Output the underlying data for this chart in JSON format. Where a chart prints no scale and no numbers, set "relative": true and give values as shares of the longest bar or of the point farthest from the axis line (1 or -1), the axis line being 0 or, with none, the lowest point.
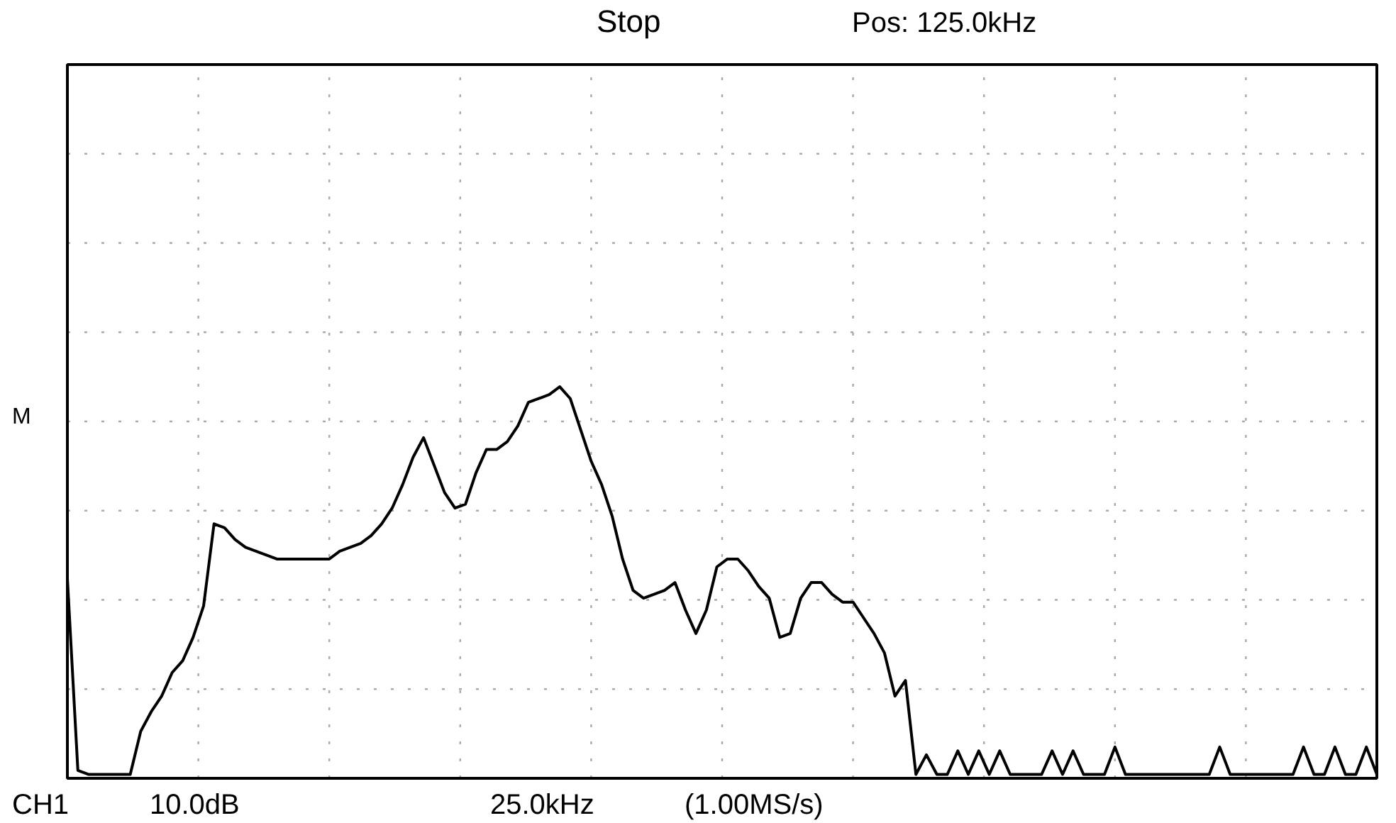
{
  "chart_data": {
    "type": "line",
    "relative": true,
    "color": "#000000",
    "categories": [
      null,
      null,
      null,
      null,
      null,
      null,
      null,
      null,
      null,
      null,
      null,
      null,
      null,
      null,
      null,
      null,
      null,
      null,
      null,
      null,
      null,
      null,
      null,
      null,
      null,
      null,
      null,
      null,
      null,
      null,
      null,
      null,
      null,
      null,
      null,
      null,
      null,
      null,
      null,
      null,
      null,
      null,
      null,
      null,
      null,
      null,
      null,
      null,
      null,
      null,
      null,
      null,
      null,
      null,
      null,
      null,
      null,
      null,
      null,
      null,
      null,
      null,
      null,
      null,
      null,
      null,
      null,
      null,
      null,
      null,
      null,
      null,
      null,
      null,
      null,
      null,
      null,
      null,
      null,
      null,
      null,
      null,
      null,
      null,
      null,
      null,
      null,
      null,
      null,
      null,
      null,
      null,
      null,
      null,
      null,
      null,
      null,
      null,
      null,
      null,
      null,
      null,
      null,
      null,
      null,
      null,
      null,
      null,
      null,
      null,
      null,
      null,
      null,
      null,
      null,
      null,
      null,
      null,
      null,
      null,
      null,
      null,
      null,
      null,
      null,
      null
    ],
    "values": [
      0.51,
      0.02,
      0.01,
      0.01,
      0.01,
      0.01,
      0.01,
      0.12,
      0.17,
      0.21,
      0.27,
      0.3,
      0.36,
      0.44,
      0.65,
      0.64,
      0.61,
      0.59,
      0.58,
      0.57,
      0.56,
      0.56,
      0.56,
      0.56,
      0.56,
      0.56,
      0.58,
      0.59,
      0.6,
      0.62,
      0.65,
      0.69,
      0.75,
      0.82,
      0.87,
      0.8,
      0.73,
      0.69,
      0.7,
      0.78,
      0.84,
      0.84,
      0.86,
      0.9,
      0.96,
      0.97,
      0.98,
      1.0,
      0.97,
      0.89,
      0.81,
      0.75,
      0.67,
      0.56,
      0.48,
      0.46,
      0.47,
      0.48,
      0.5,
      0.43,
      0.37,
      0.43,
      0.54,
      0.56,
      0.56,
      0.53,
      0.49,
      0.46,
      0.36,
      0.37,
      0.46,
      0.5,
      0.5,
      0.47,
      0.45,
      0.45,
      0.41,
      0.37,
      0.32,
      0.21,
      0.25,
      0.01,
      0.06,
      0.01,
      0.01,
      0.07,
      0.01,
      0.07,
      0.01,
      0.07,
      0.01,
      0.01,
      0.01,
      0.01,
      0.07,
      0.01,
      0.07,
      0.01,
      0.01,
      0.01,
      0.08,
      0.01,
      0.01,
      0.01,
      0.01,
      0.01,
      0.01,
      0.01,
      0.01,
      0.01,
      0.08,
      0.01,
      0.01,
      0.01,
      0.01,
      0.01,
      0.01,
      0.01,
      0.08,
      0.01,
      0.01,
      0.08,
      0.01,
      0.01,
      0.08,
      0.01
    ],
    "grid": true,
    "marker": "none",
    "line_style": "solid",
    "annotations": [
      "Stop",
      "Pos: 125.0kHz",
      "CH1",
      "10.0dB",
      "25.0kHz",
      "(1.00MS/s)",
      "M"
    ]
  }
}
